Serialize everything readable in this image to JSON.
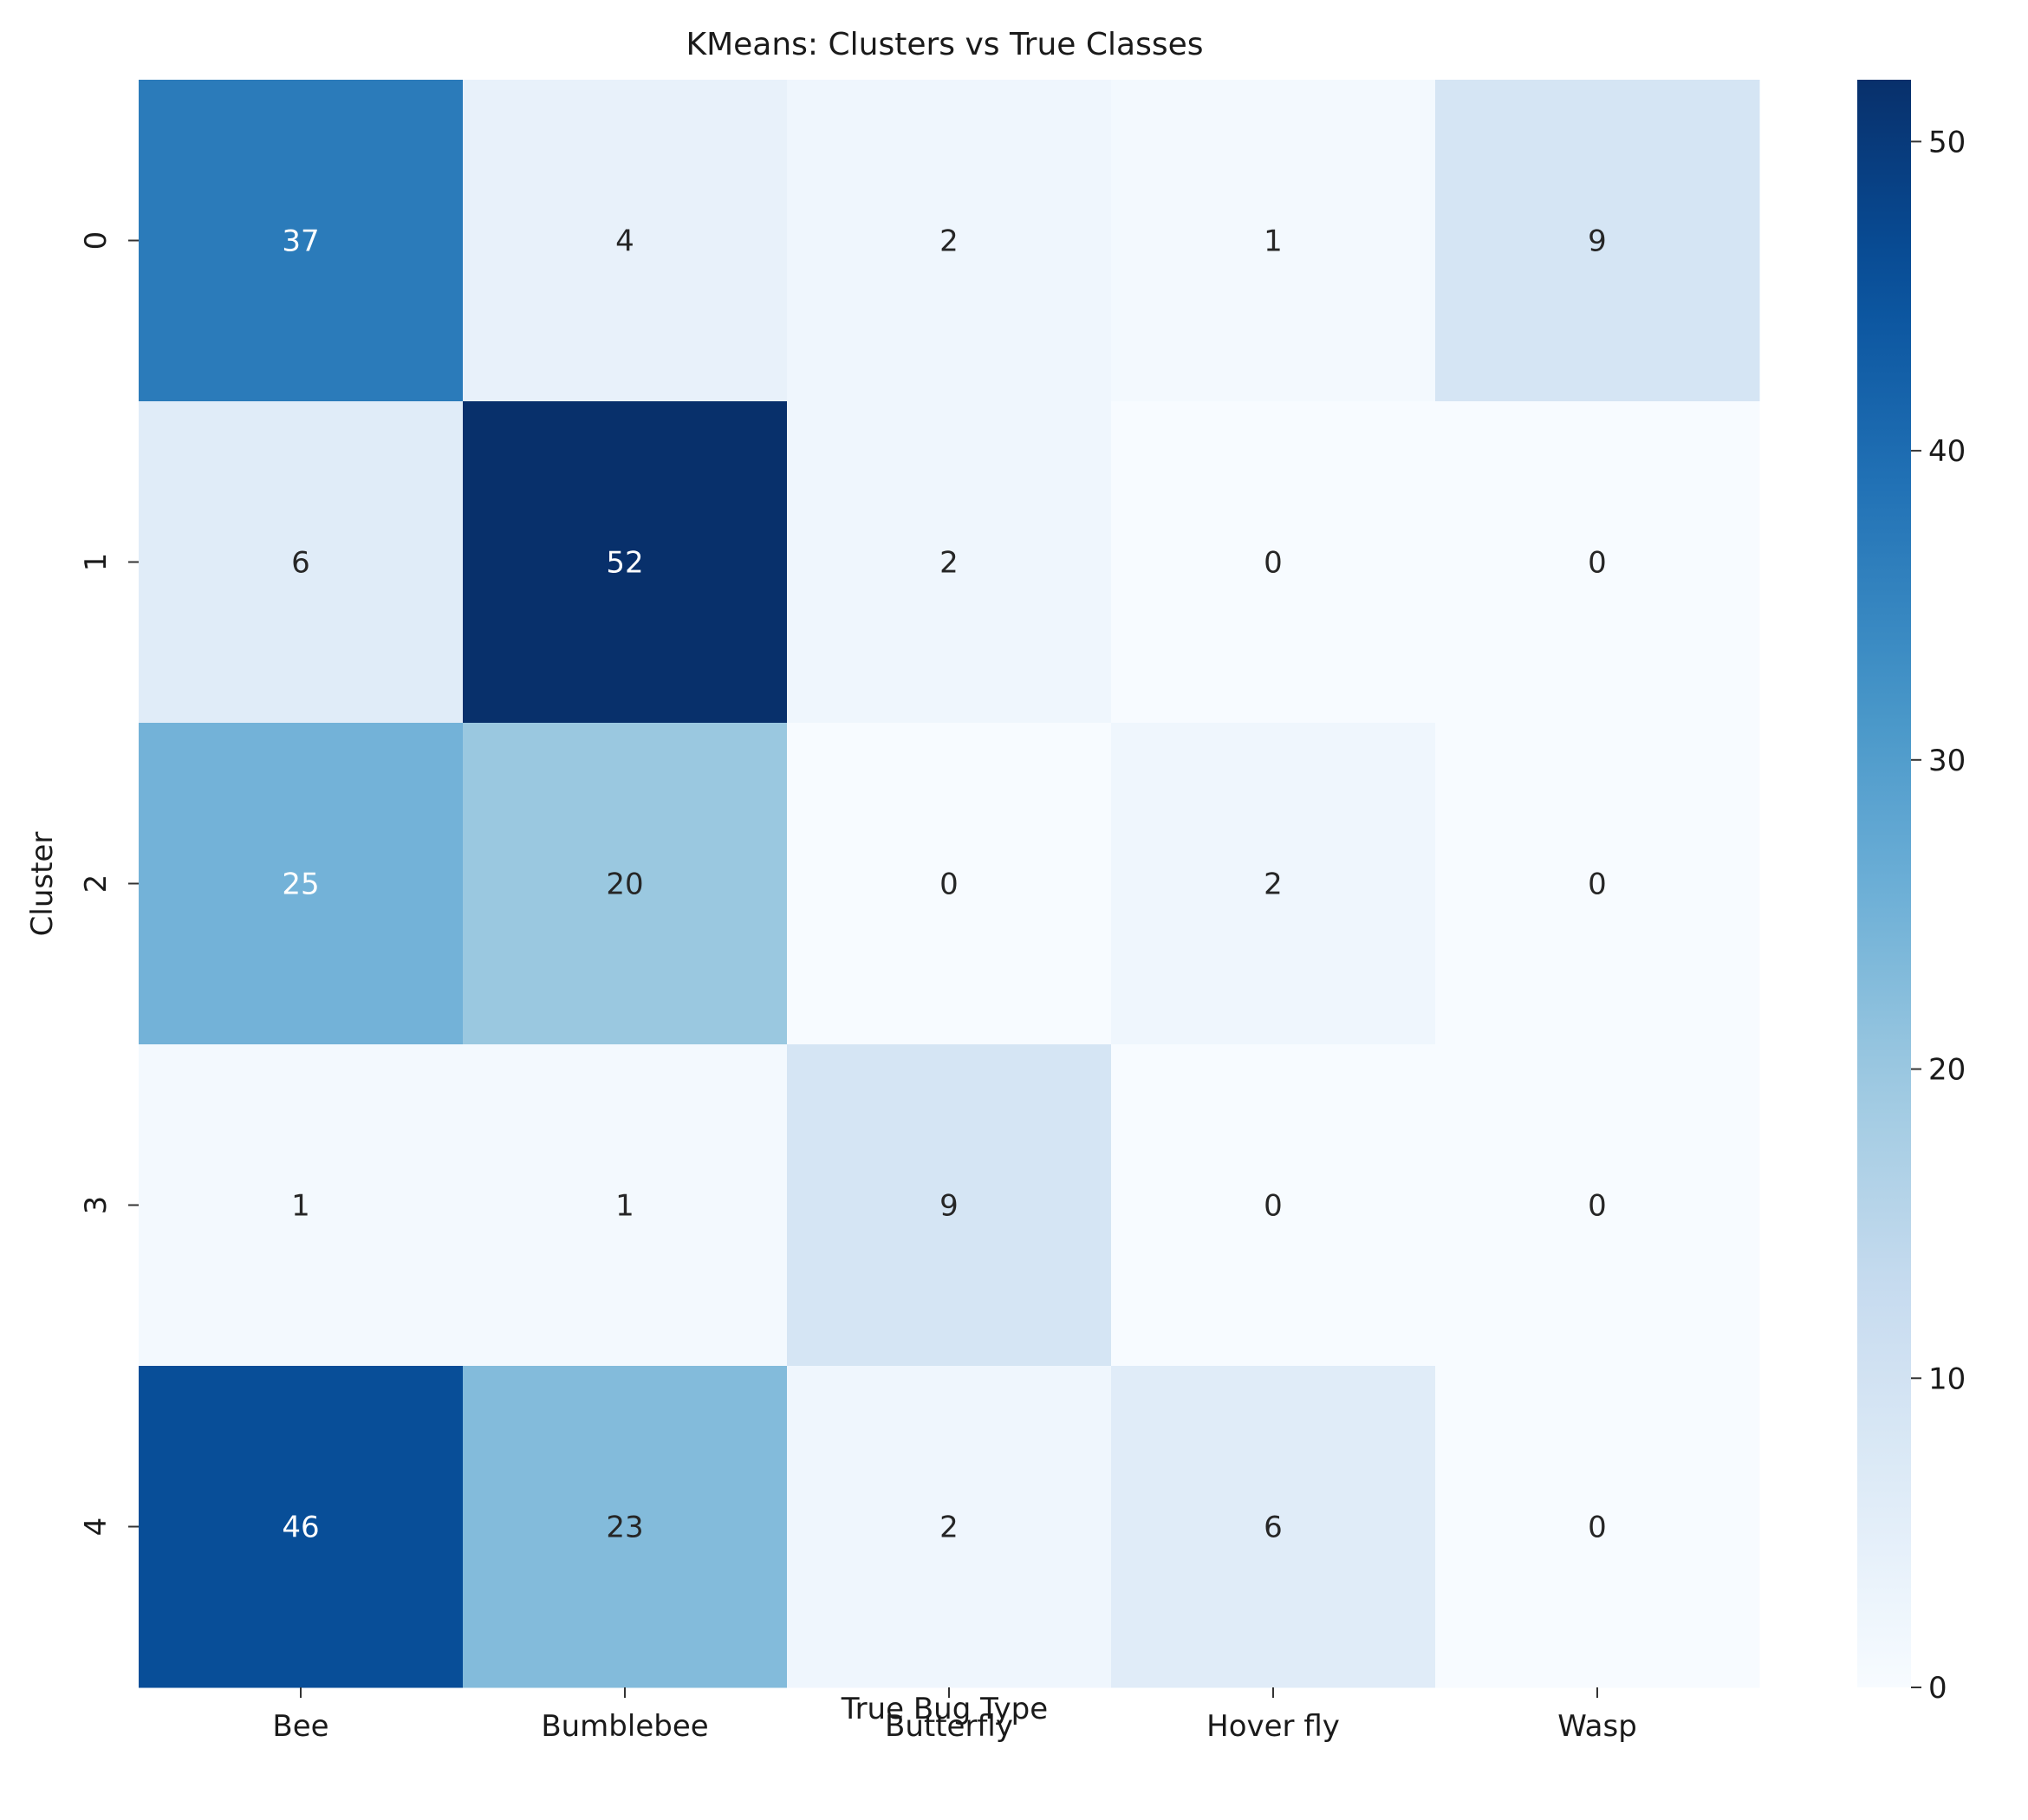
{
  "chart_data": {
    "type": "heatmap",
    "title": "KMeans: Clusters vs True Classes",
    "xlabel": "True Bug Type",
    "ylabel": "Cluster",
    "x_categories": [
      "Bee",
      "Bumblebee",
      "Butterfly",
      "Hover fly",
      "Wasp"
    ],
    "y_categories": [
      "0",
      "1",
      "2",
      "3",
      "4"
    ],
    "values": [
      [
        37,
        4,
        2,
        1,
        9
      ],
      [
        6,
        52,
        2,
        0,
        0
      ],
      [
        25,
        20,
        0,
        2,
        0
      ],
      [
        1,
        1,
        9,
        0,
        0
      ],
      [
        46,
        23,
        2,
        6,
        0
      ]
    ],
    "colormap": "Blues",
    "colorbar": {
      "range": [
        0,
        52
      ],
      "ticks": [
        0,
        10,
        20,
        30,
        40,
        50
      ]
    },
    "grid": false
  }
}
